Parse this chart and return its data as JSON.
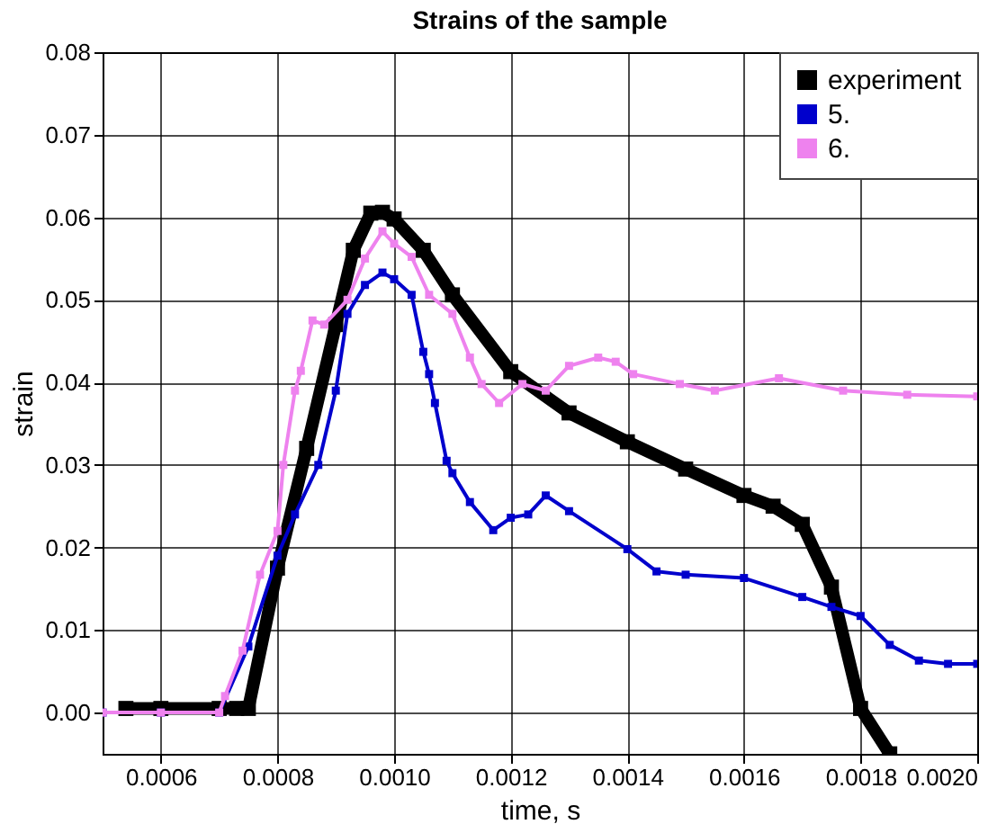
{
  "chart_data": {
    "type": "line",
    "title": "Strains of the sample",
    "xlabel": "time, s",
    "ylabel": "strain",
    "xlim": [
      0.0005,
      0.002
    ],
    "xticks": [
      0.0006,
      0.0008,
      {
        "value": 0.001,
        "label": "0.0010"
      },
      0.0012,
      0.0014,
      0.0016,
      0.0018,
      {
        "value": 0.002,
        "label": "0.0020"
      }
    ],
    "ylim": [
      -0.005,
      0.08
    ],
    "yticks": [
      {
        "value": 0,
        "label": "0.00"
      },
      0.01,
      0.02,
      0.03,
      0.04,
      0.05,
      0.06,
      0.07,
      0.08
    ],
    "grid": true,
    "legend": "top right",
    "marker": "square",
    "series": [
      {
        "name": "experiment",
        "color": "#000000",
        "x": [
          0.00054,
          0.0006,
          0.0007,
          0.00073,
          0.00075,
          0.0008,
          0.00085,
          0.0009,
          0.00093,
          0.00096,
          0.00098,
          0.001,
          0.00105,
          0.0011,
          0.0012,
          0.0013,
          0.0014,
          0.0015,
          0.0016,
          0.00165,
          0.0017,
          0.00175,
          0.0018,
          0.00185
        ],
        "values": [
          0.0005,
          0.0005,
          0.0005,
          0.0005,
          0.0005,
          0.0175,
          0.032,
          0.047,
          0.056,
          0.0605,
          0.0606,
          0.0598,
          0.056,
          0.0506,
          0.0413,
          0.0363,
          0.0328,
          0.0295,
          0.0263,
          0.025,
          0.0228,
          0.0152,
          0.0005,
          -0.005
        ]
      },
      {
        "name": "5.",
        "color": "#0000cc",
        "x": [
          0.0005,
          0.0006,
          0.0007,
          0.00075,
          0.0008,
          0.00083,
          0.00087,
          0.0009,
          0.00092,
          0.00095,
          0.00098,
          0.001,
          0.00103,
          0.00105,
          0.00106,
          0.00107,
          0.00109,
          0.0011,
          0.00113,
          0.00117,
          0.0012,
          0.00123,
          0.00126,
          0.0013,
          0.0014,
          0.00145,
          0.0015,
          0.0016,
          0.0017,
          0.00175,
          0.0018,
          0.00185,
          0.0019,
          0.00195,
          0.002
        ],
        "values": [
          0,
          0,
          0,
          0.008,
          0.019,
          0.024,
          0.03,
          0.039,
          0.0483,
          0.0518,
          0.0533,
          0.0525,
          0.0506,
          0.0437,
          0.041,
          0.0375,
          0.0305,
          0.029,
          0.0255,
          0.0221,
          0.0236,
          0.024,
          0.0263,
          0.0244,
          0.0198,
          0.0171,
          0.0167,
          0.0163,
          0.014,
          0.0128,
          0.0117,
          0.0082,
          0.0063,
          0.0059,
          0.0059
        ]
      },
      {
        "name": "6.",
        "color": "#ee82ee",
        "x": [
          0.0005,
          0.0006,
          0.0007,
          0.00071,
          0.00074,
          0.00077,
          0.0008,
          0.00081,
          0.00083,
          0.00084,
          0.00086,
          0.00088,
          0.00092,
          0.00095,
          0.00098,
          0.001,
          0.00103,
          0.00106,
          0.0011,
          0.00113,
          0.00115,
          0.00118,
          0.00122,
          0.00126,
          0.0013,
          0.00135,
          0.00138,
          0.00141,
          0.00149,
          0.00155,
          0.00166,
          0.00177,
          0.00188,
          0.002
        ],
        "values": [
          0,
          0,
          0,
          0.002,
          0.0075,
          0.0167,
          0.022,
          0.03,
          0.039,
          0.0414,
          0.0475,
          0.047,
          0.05,
          0.055,
          0.0583,
          0.0568,
          0.0552,
          0.0506,
          0.0483,
          0.043,
          0.0398,
          0.0375,
          0.0398,
          0.039,
          0.042,
          0.043,
          0.0425,
          0.041,
          0.0398,
          0.039,
          0.0405,
          0.039,
          0.0385,
          0.0383
        ]
      }
    ]
  }
}
